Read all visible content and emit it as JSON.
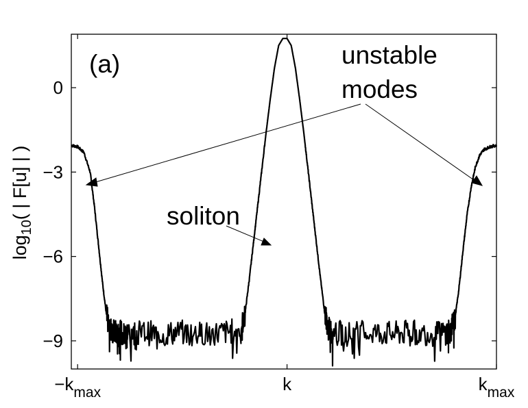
{
  "chart_data": {
    "type": "line",
    "panel_label": "(a)",
    "ylabel": {
      "base": "log",
      "subscript": "10",
      "rest": "( | F[u] | )"
    },
    "xlabel": "",
    "xticks": [
      {
        "pos": -1,
        "main": "−k",
        "sub": "max"
      },
      {
        "pos": 0,
        "main": "k",
        "sub": ""
      },
      {
        "pos": 1,
        "main": "k",
        "sub": "max"
      }
    ],
    "yticks": [
      0,
      -3,
      -6,
      -9
    ],
    "ytick_labels": [
      "0",
      "−3",
      "−6",
      "−9"
    ],
    "xlim": [
      -1.03,
      1.0
    ],
    "ylim": [
      -10.0,
      1.9
    ],
    "grid": false,
    "annotations": {
      "unstable_line1": "unstable",
      "unstable_line2": "modes",
      "soliton": "soliton"
    },
    "series": [
      {
        "x": [
          -1.03,
          -1.0,
          -0.97,
          -0.94,
          -0.92,
          -0.9,
          -0.88,
          -0.86,
          -0.84,
          -0.82,
          -0.8,
          -0.78,
          -0.76,
          -0.7,
          -0.6,
          -0.5,
          -0.4,
          -0.3,
          -0.22,
          -0.2,
          -0.18,
          -0.16,
          -0.14,
          -0.12,
          -0.1,
          -0.08,
          -0.06,
          -0.04,
          -0.02,
          0.0,
          0.02,
          0.04,
          0.06,
          0.08,
          0.1,
          0.12,
          0.14,
          0.16,
          0.18,
          0.2,
          0.22,
          0.3,
          0.4,
          0.5,
          0.6,
          0.7,
          0.76,
          0.78,
          0.8,
          0.82,
          0.84,
          0.86,
          0.88,
          0.9,
          0.92,
          0.94,
          0.97,
          1.0
        ],
        "y": [
          -2.05,
          -2.1,
          -2.3,
          -3.0,
          -4.2,
          -5.6,
          -7.0,
          -8.2,
          -8.6,
          -8.7,
          -8.7,
          -8.75,
          -8.7,
          -8.7,
          -8.75,
          -8.7,
          -8.75,
          -8.7,
          -8.6,
          -8.0,
          -6.8,
          -5.5,
          -4.2,
          -2.9,
          -1.6,
          -0.4,
          0.7,
          1.5,
          1.75,
          1.75,
          1.5,
          0.7,
          -0.4,
          -1.6,
          -2.9,
          -4.2,
          -5.5,
          -6.8,
          -8.0,
          -8.6,
          -8.7,
          -8.75,
          -8.7,
          -8.75,
          -8.7,
          -8.75,
          -8.7,
          -8.65,
          -8.3,
          -7.2,
          -5.8,
          -4.5,
          -3.5,
          -2.8,
          -2.4,
          -2.2,
          -2.1,
          -2.05
        ]
      }
    ]
  }
}
